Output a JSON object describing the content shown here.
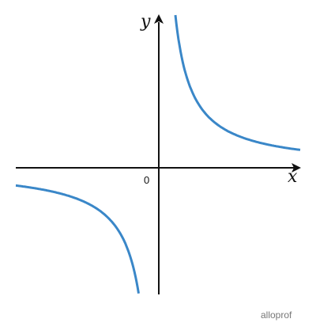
{
  "axes": {
    "x_label": "x",
    "y_label": "y",
    "origin_label": "0"
  },
  "watermark": "alloprof"
}
